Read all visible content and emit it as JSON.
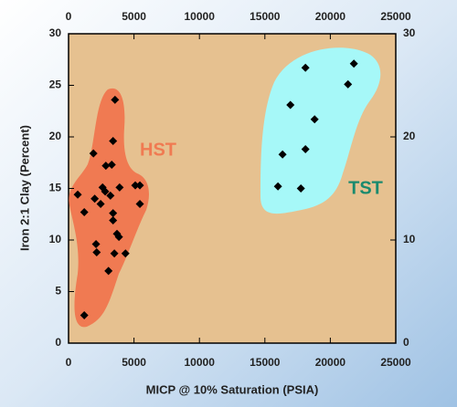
{
  "chart_data": {
    "type": "scatter",
    "x_label": "MICP @ 10% Saturation (PSIA)",
    "y_label": "Iron 2:1 Clay (Percent)",
    "annotations": [
      "HST",
      "TST"
    ],
    "color": "#000000",
    "x": [
      3550,
      3400,
      1900,
      3300,
      2850,
      700,
      2000,
      2600,
      2800,
      3200,
      3900,
      5100,
      5450,
      5450,
      2450,
      1200,
      3400,
      3400,
      3700,
      3850,
      2100,
      2150,
      3500,
      4350,
      3050,
      1200,
      18100,
      21800,
      21350,
      16950,
      18800,
      16350,
      18100,
      16000,
      17750
    ],
    "values": [
      23.6,
      19.6,
      18.4,
      17.3,
      17.2,
      14.4,
      14.0,
      15.1,
      14.7,
      14.3,
      15.1,
      15.3,
      15.3,
      13.5,
      13.5,
      12.7,
      12.6,
      11.9,
      10.6,
      10.3,
      9.6,
      8.8,
      8.7,
      8.7,
      7.0,
      2.7,
      26.7,
      27.1,
      25.1,
      23.1,
      21.7,
      18.3,
      18.8,
      15.2,
      15.0
    ],
    "xlim": [
      0,
      25000
    ],
    "xticks": [
      0,
      5000,
      10000,
      15000,
      20000,
      25000
    ],
    "ylim": [
      0,
      30
    ],
    "yticks": [
      0,
      5,
      10,
      15,
      20,
      25,
      30
    ],
    "y2lim": [
      0,
      30
    ],
    "y2ticks": [
      0,
      10,
      20,
      30
    ]
  }
}
